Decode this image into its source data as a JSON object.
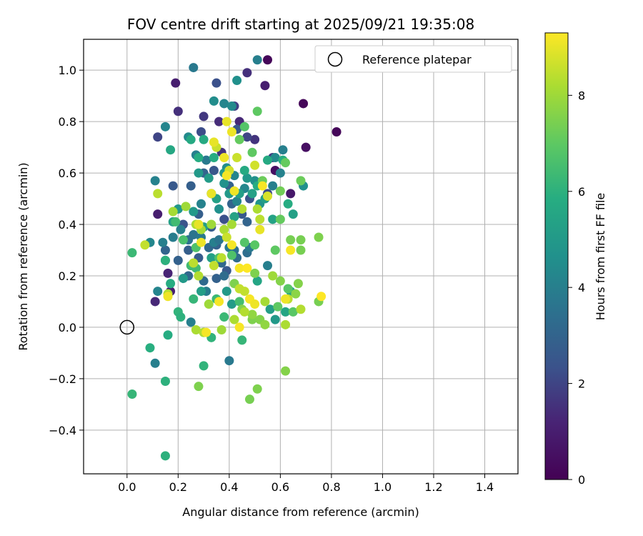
{
  "chart_data": {
    "type": "scatter",
    "title": "FOV centre drift starting at 2025/09/21 19:35:08",
    "xlabel": "Angular distance from reference (arcmin)",
    "ylabel": "Rotation from reference (arcmin)",
    "xlim": [
      -0.17,
      1.53
    ],
    "ylim": [
      -0.57,
      1.12
    ],
    "xticks": [
      "0.0",
      "0.2",
      "0.4",
      "0.6",
      "0.8",
      "1.0",
      "1.2",
      "1.4"
    ],
    "yticks": [
      "−0.4",
      "−0.2",
      "0.0",
      "0.2",
      "0.4",
      "0.6",
      "0.8",
      "1.0"
    ],
    "grid": true,
    "legend": {
      "placement": "top-right",
      "entries": [
        "Reference platepar"
      ]
    },
    "reference_point": {
      "x": 0.0,
      "y": 0.0
    },
    "colorbar": {
      "label": "Hours from first FF file",
      "range": [
        0,
        9.3
      ],
      "ticks": [
        "0",
        "2",
        "4",
        "6",
        "8"
      ],
      "colormap": "viridis"
    },
    "points": [
      [
        0.55,
        1.04,
        0.2
      ],
      [
        0.69,
        0.87,
        0.2
      ],
      [
        0.82,
        0.76,
        0.2
      ],
      [
        0.7,
        0.7,
        0.5
      ],
      [
        0.58,
        0.61,
        0.5
      ],
      [
        0.64,
        0.52,
        0.8
      ],
      [
        0.19,
        0.95,
        1.0
      ],
      [
        0.54,
        0.94,
        1.0
      ],
      [
        0.47,
        0.99,
        1.5
      ],
      [
        0.12,
        0.44,
        1.0
      ],
      [
        0.16,
        0.21,
        1.2
      ],
      [
        0.17,
        0.14,
        1.0
      ],
      [
        0.11,
        0.1,
        1.3
      ],
      [
        0.2,
        0.84,
        1.5
      ],
      [
        0.3,
        0.82,
        1.7
      ],
      [
        0.36,
        0.8,
        1.4
      ],
      [
        0.42,
        0.86,
        1.9
      ],
      [
        0.44,
        0.8,
        1.3
      ],
      [
        0.5,
        0.73,
        1.6
      ],
      [
        0.12,
        0.74,
        2.0
      ],
      [
        0.37,
        0.68,
        1.6
      ],
      [
        0.35,
        0.95,
        2.3
      ],
      [
        0.29,
        0.76,
        2.2
      ],
      [
        0.47,
        0.74,
        2.0
      ],
      [
        0.57,
        0.66,
        1.8
      ],
      [
        0.43,
        0.77,
        2.5
      ],
      [
        0.34,
        0.61,
        2.5
      ],
      [
        0.48,
        0.5,
        2.4
      ],
      [
        0.55,
        0.52,
        2.2
      ],
      [
        0.18,
        0.55,
        2.6
      ],
      [
        0.25,
        0.55,
        2.8
      ],
      [
        0.3,
        0.6,
        3.0
      ],
      [
        0.4,
        0.55,
        2.9
      ],
      [
        0.41,
        0.48,
        3.0
      ],
      [
        0.45,
        0.44,
        2.6
      ],
      [
        0.22,
        0.4,
        2.4
      ],
      [
        0.28,
        0.44,
        2.8
      ],
      [
        0.33,
        0.39,
        2.7
      ],
      [
        0.38,
        0.42,
        2.3
      ],
      [
        0.47,
        0.41,
        3.0
      ],
      [
        0.15,
        0.3,
        3.0
      ],
      [
        0.2,
        0.26,
        2.9
      ],
      [
        0.24,
        0.3,
        2.8
      ],
      [
        0.28,
        0.27,
        2.7
      ],
      [
        0.32,
        0.31,
        3.2
      ],
      [
        0.35,
        0.32,
        2.9
      ],
      [
        0.37,
        0.25,
        3.1
      ],
      [
        0.39,
        0.22,
        2.6
      ],
      [
        0.43,
        0.27,
        3.3
      ],
      [
        0.47,
        0.29,
        3.4
      ],
      [
        0.24,
        0.2,
        3.1
      ],
      [
        0.3,
        0.18,
        3.2
      ],
      [
        0.35,
        0.19,
        2.9
      ],
      [
        0.38,
        0.2,
        3.3
      ],
      [
        0.42,
        0.3,
        3.5
      ],
      [
        0.26,
        1.01,
        3.8
      ],
      [
        0.51,
        1.04,
        4.0
      ],
      [
        0.38,
        0.87,
        4.2
      ],
      [
        0.41,
        0.86,
        4.4
      ],
      [
        0.34,
        0.88,
        4.5
      ],
      [
        0.43,
        0.96,
        4.6
      ],
      [
        0.15,
        0.78,
        4.2
      ],
      [
        0.24,
        0.74,
        4.4
      ],
      [
        0.27,
        0.67,
        4.0
      ],
      [
        0.31,
        0.65,
        3.8
      ],
      [
        0.39,
        0.62,
        4.5
      ],
      [
        0.42,
        0.59,
        4.2
      ],
      [
        0.46,
        0.54,
        4.3
      ],
      [
        0.5,
        0.57,
        4.6
      ],
      [
        0.57,
        0.55,
        4.0
      ],
      [
        0.6,
        0.6,
        4.1
      ],
      [
        0.61,
        0.69,
        4.0
      ],
      [
        0.58,
        0.66,
        4.4
      ],
      [
        0.69,
        0.55,
        4.6
      ],
      [
        0.11,
        0.57,
        4.1
      ],
      [
        0.14,
        0.33,
        4.0
      ],
      [
        0.09,
        0.33,
        4.3
      ],
      [
        0.18,
        0.35,
        3.9
      ],
      [
        0.21,
        0.38,
        4.0
      ],
      [
        0.26,
        0.36,
        3.6
      ],
      [
        0.29,
        0.35,
        3.8
      ],
      [
        0.34,
        0.33,
        4.0
      ],
      [
        0.36,
        0.34,
        3.6
      ],
      [
        0.4,
        0.31,
        3.8
      ],
      [
        0.48,
        0.31,
        3.8
      ],
      [
        0.15,
        0.26,
        3.8
      ],
      [
        0.12,
        0.14,
        4.2
      ],
      [
        0.11,
        -0.14,
        4.0
      ],
      [
        0.25,
        0.02,
        4.0
      ],
      [
        0.4,
        -0.13,
        3.8
      ],
      [
        0.55,
        0.24,
        4.0
      ],
      [
        0.31,
        0.14,
        3.9
      ],
      [
        0.24,
        0.34,
        3.5
      ],
      [
        0.33,
        0.52,
        3.8
      ],
      [
        0.29,
        0.48,
        4.1
      ],
      [
        0.36,
        0.46,
        4.6
      ],
      [
        0.43,
        0.49,
        4.2
      ],
      [
        0.38,
        0.56,
        4.7
      ],
      [
        0.47,
        0.58,
        4.9
      ],
      [
        0.52,
        0.48,
        4.8
      ],
      [
        0.28,
        0.6,
        5.0
      ],
      [
        0.32,
        0.58,
        5.1
      ],
      [
        0.4,
        0.52,
        5.0
      ],
      [
        0.44,
        0.52,
        5.2
      ],
      [
        0.49,
        0.52,
        5.3
      ],
      [
        0.54,
        0.5,
        5.2
      ],
      [
        0.35,
        0.5,
        5.3
      ],
      [
        0.38,
        0.6,
        5.0
      ],
      [
        0.3,
        0.39,
        5.2
      ],
      [
        0.26,
        0.45,
        5.0
      ],
      [
        0.33,
        0.27,
        5.3
      ],
      [
        0.29,
        0.14,
        5.2
      ],
      [
        0.39,
        0.14,
        5.0
      ],
      [
        0.41,
        0.09,
        5.1
      ],
      [
        0.18,
        0.41,
        5.3
      ],
      [
        0.2,
        0.46,
        4.9
      ],
      [
        0.22,
        0.19,
        5.0
      ],
      [
        0.42,
        0.43,
        5.4
      ],
      [
        0.51,
        0.18,
        5.5
      ],
      [
        0.56,
        0.07,
        5.2
      ],
      [
        0.64,
        0.14,
        5.4
      ],
      [
        0.58,
        0.03,
        5.0
      ],
      [
        0.62,
        0.06,
        5.5
      ],
      [
        0.57,
        0.42,
        5.4
      ],
      [
        0.65,
        0.44,
        5.3
      ],
      [
        0.17,
        0.69,
        5.6
      ],
      [
        0.25,
        0.73,
        5.7
      ],
      [
        0.28,
        0.66,
        5.8
      ],
      [
        0.34,
        0.66,
        5.8
      ],
      [
        0.3,
        0.73,
        5.7
      ],
      [
        0.46,
        0.61,
        5.7
      ],
      [
        0.51,
        0.55,
        5.8
      ],
      [
        0.55,
        0.65,
        5.7
      ],
      [
        0.61,
        0.65,
        5.9
      ],
      [
        0.63,
        0.48,
        5.8
      ],
      [
        0.15,
        0.26,
        6.0
      ],
      [
        0.17,
        0.17,
        5.8
      ],
      [
        0.2,
        0.06,
        6.1
      ],
      [
        0.21,
        0.04,
        6.0
      ],
      [
        0.16,
        -0.03,
        5.8
      ],
      [
        0.09,
        -0.08,
        5.9
      ],
      [
        0.15,
        -0.21,
        6.0
      ],
      [
        0.15,
        -0.5,
        6.0
      ],
      [
        0.02,
        -0.26,
        6.2
      ],
      [
        0.3,
        -0.15,
        6.1
      ],
      [
        0.33,
        -0.04,
        6.1
      ],
      [
        0.45,
        -0.05,
        6.2
      ],
      [
        0.38,
        0.04,
        6.3
      ],
      [
        0.35,
        0.11,
        6.3
      ],
      [
        0.26,
        0.11,
        6.2
      ],
      [
        0.02,
        0.29,
        6.3
      ],
      [
        0.19,
        0.41,
        6.4
      ],
      [
        0.25,
        0.24,
        6.4
      ],
      [
        0.27,
        0.23,
        6.4
      ],
      [
        0.44,
        0.1,
        6.5
      ],
      [
        0.22,
        0.34,
        6.6
      ],
      [
        0.27,
        0.31,
        6.7
      ],
      [
        0.36,
        0.27,
        6.6
      ],
      [
        0.41,
        0.28,
        6.7
      ],
      [
        0.46,
        0.33,
        6.8
      ],
      [
        0.5,
        0.32,
        6.9
      ],
      [
        0.58,
        0.3,
        7.0
      ],
      [
        0.63,
        0.15,
        6.9
      ],
      [
        0.59,
        0.08,
        7.0
      ],
      [
        0.65,
        0.06,
        6.9
      ],
      [
        0.46,
        0.78,
        6.8
      ],
      [
        0.51,
        0.84,
        7.0
      ],
      [
        0.44,
        0.73,
        7.1
      ],
      [
        0.49,
        0.68,
        7.0
      ],
      [
        0.53,
        0.57,
        7.2
      ],
      [
        0.6,
        0.53,
        7.3
      ],
      [
        0.62,
        0.64,
        7.1
      ],
      [
        0.68,
        0.57,
        7.2
      ],
      [
        0.6,
        0.42,
        7.1
      ],
      [
        0.64,
        0.34,
        7.4
      ],
      [
        0.68,
        0.34,
        7.4
      ],
      [
        0.68,
        0.3,
        7.4
      ],
      [
        0.75,
        0.35,
        7.5
      ],
      [
        0.75,
        0.1,
        7.4
      ],
      [
        0.49,
        0.03,
        7.5
      ],
      [
        0.52,
        0.03,
        7.6
      ],
      [
        0.48,
        -0.28,
        7.4
      ],
      [
        0.51,
        -0.24,
        7.5
      ],
      [
        0.62,
        -0.17,
        7.6
      ],
      [
        0.28,
        -0.23,
        7.5
      ],
      [
        0.3,
        -0.02,
        7.4
      ],
      [
        0.45,
        0.07,
        7.6
      ],
      [
        0.42,
        0.17,
        7.5
      ],
      [
        0.5,
        0.21,
        7.5
      ],
      [
        0.6,
        0.18,
        7.6
      ],
      [
        0.66,
        0.13,
        7.7
      ],
      [
        0.67,
        0.17,
        7.6
      ],
      [
        0.54,
        0.01,
        7.8
      ],
      [
        0.49,
        0.05,
        7.8
      ],
      [
        0.37,
        -0.01,
        8.0
      ],
      [
        0.32,
        0.09,
        8.0
      ],
      [
        0.27,
        -0.01,
        8.2
      ],
      [
        0.3,
        -0.02,
        8.3
      ],
      [
        0.42,
        0.03,
        8.2
      ],
      [
        0.46,
        0.06,
        8.3
      ],
      [
        0.54,
        0.1,
        8.1
      ],
      [
        0.57,
        0.2,
        8.0
      ],
      [
        0.62,
        0.01,
        8.2
      ],
      [
        0.63,
        0.11,
        8.4
      ],
      [
        0.68,
        0.07,
        8.3
      ],
      [
        0.18,
        0.45,
        8.1
      ],
      [
        0.23,
        0.47,
        8.0
      ],
      [
        0.27,
        0.4,
        8.2
      ],
      [
        0.29,
        0.38,
        8.1
      ],
      [
        0.33,
        0.4,
        8.0
      ],
      [
        0.38,
        0.38,
        8.2
      ],
      [
        0.41,
        0.4,
        8.1
      ],
      [
        0.45,
        0.46,
        8.3
      ],
      [
        0.51,
        0.46,
        8.2
      ],
      [
        0.52,
        0.42,
        8.4
      ],
      [
        0.07,
        0.32,
        8.5
      ],
      [
        0.12,
        0.52,
        8.4
      ],
      [
        0.16,
        0.13,
        8.3
      ],
      [
        0.26,
        0.25,
        8.4
      ],
      [
        0.28,
        0.2,
        8.3
      ],
      [
        0.34,
        0.24,
        8.5
      ],
      [
        0.37,
        0.27,
        8.4
      ],
      [
        0.39,
        0.35,
        8.6
      ],
      [
        0.44,
        0.15,
        8.5
      ],
      [
        0.46,
        0.14,
        8.5
      ],
      [
        0.35,
        0.7,
        8.6
      ],
      [
        0.4,
        0.61,
        8.7
      ],
      [
        0.43,
        0.66,
        8.6
      ],
      [
        0.5,
        0.63,
        8.7
      ],
      [
        0.55,
        0.51,
        8.8
      ],
      [
        0.34,
        0.72,
        9.0
      ],
      [
        0.39,
        0.8,
        9.0
      ],
      [
        0.41,
        0.76,
        9.1
      ],
      [
        0.38,
        0.66,
        9.1
      ],
      [
        0.39,
        0.59,
        9.2
      ],
      [
        0.42,
        0.53,
        9.1
      ],
      [
        0.33,
        0.52,
        9.0
      ],
      [
        0.53,
        0.55,
        9.2
      ],
      [
        0.29,
        0.33,
        9.1
      ],
      [
        0.41,
        0.32,
        9.2
      ],
      [
        0.44,
        0.23,
        9.2
      ],
      [
        0.47,
        0.23,
        9.3
      ],
      [
        0.48,
        0.11,
        9.2
      ],
      [
        0.5,
        0.09,
        9.1
      ],
      [
        0.36,
        0.1,
        9.2
      ],
      [
        0.16,
        0.12,
        9.1
      ],
      [
        0.31,
        -0.02,
        9.2
      ],
      [
        0.44,
        0.0,
        9.2
      ],
      [
        0.64,
        0.3,
        9.2
      ],
      [
        0.62,
        0.11,
        9.1
      ],
      [
        0.76,
        0.12,
        9.3
      ],
      [
        0.52,
        0.38,
        9.0
      ],
      [
        0.28,
        0.4,
        9.0
      ]
    ]
  }
}
